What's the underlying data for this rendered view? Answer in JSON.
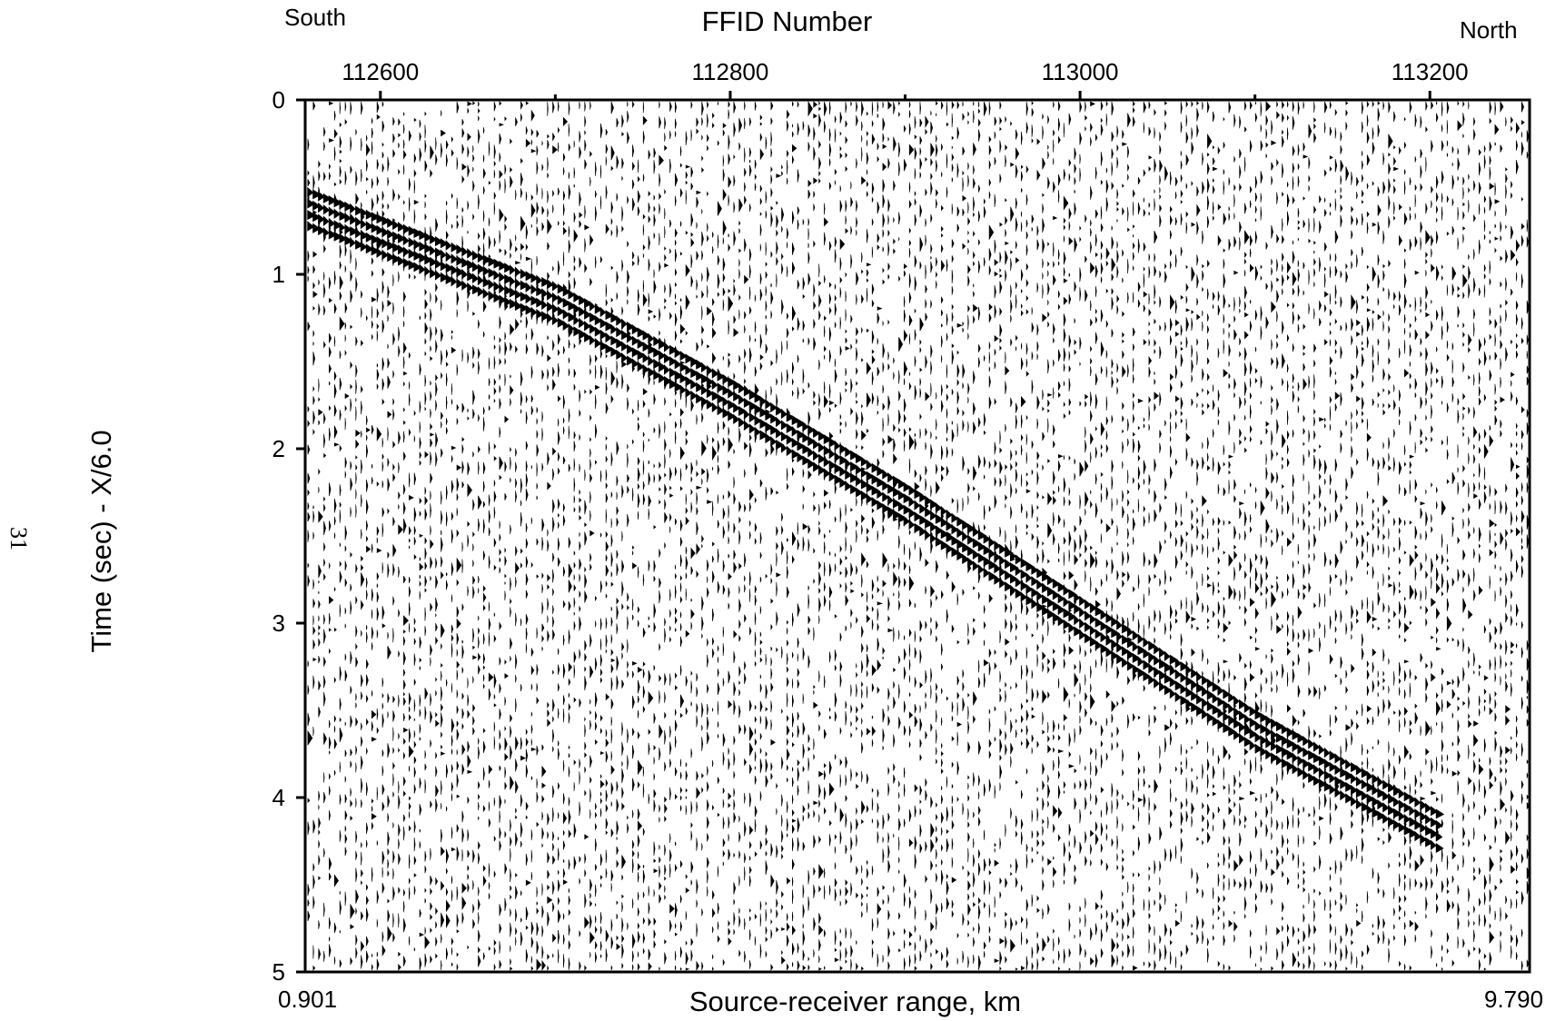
{
  "page_number": "31",
  "labels": {
    "south": "South",
    "north": "North",
    "top_axis_title": "FFID Number",
    "x_axis_title": "Source-receiver range, km",
    "y_axis_title": "Time (sec) - X/6.0",
    "x_min": "0.901",
    "x_max": "9.790"
  },
  "chart_data": {
    "type": "heatmap",
    "title": "",
    "xlabel": "Source-receiver range, km",
    "ylabel": "Time (sec) - X/6.0",
    "x2label": "FFID Number",
    "xlim": [
      0.901,
      9.79
    ],
    "ylim": [
      0,
      5
    ],
    "y_inverted": true,
    "ffid_range": [
      112557,
      113257
    ],
    "top_ticks": [
      112600,
      112800,
      113000,
      113200
    ],
    "top_minor_ticks": [
      112700,
      112900,
      113100
    ],
    "y_ticks": [
      0,
      1,
      2,
      3,
      4,
      5
    ],
    "y_tick_labels": [
      "0",
      "1",
      "2",
      "3",
      "4",
      "5"
    ],
    "top_tick_labels": [
      "112600",
      "112800",
      "113000",
      "113200"
    ],
    "arrival": {
      "description_points_ffid_time": [
        [
          112557,
          0.5
        ],
        [
          112700,
          1.05
        ],
        [
          112800,
          1.6
        ],
        [
          112900,
          2.2
        ],
        [
          113000,
          2.85
        ],
        [
          113100,
          3.5
        ],
        [
          113200,
          4.05
        ]
      ],
      "wavelet_offsets_sec": [
        0,
        0.065,
        0.13,
        0.195
      ]
    },
    "colors": {
      "ink": "#000000",
      "background": "#ffffff"
    }
  }
}
